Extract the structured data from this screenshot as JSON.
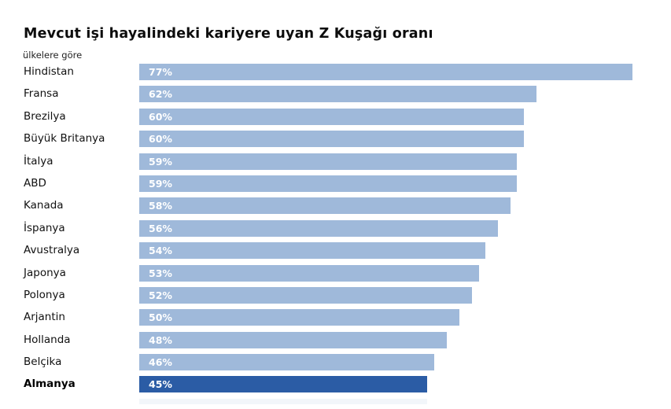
{
  "title": "Mevcut işi hayalindeki kariyere uyan Z Kuşağı oranı",
  "subtitle": "ülkelere göre",
  "colors": {
    "bar": "#9FB9DA",
    "highlight_bar": "#2B5CA5",
    "value_text": "#FFFFFF",
    "bottom_strip": "#F2F6FA"
  },
  "chart_data": {
    "type": "bar",
    "orientation": "horizontal",
    "title": "Mevcut işi hayalindeki kariyere uyan Z Kuşağı oranı",
    "subtitle": "ülkelere göre",
    "categories": [
      "Hindistan",
      "Fransa",
      "Brezilya",
      "Büyük Britanya",
      "İtalya",
      "ABD",
      "Kanada",
      "İspanya",
      "Avustralya",
      "Japonya",
      "Polonya",
      "Arjantin",
      "Hollanda",
      "Belçika",
      "Almanya"
    ],
    "values": [
      77,
      62,
      60,
      60,
      59,
      59,
      58,
      56,
      54,
      53,
      52,
      50,
      48,
      46,
      45
    ],
    "value_suffix": "%",
    "value_labels": [
      "77%",
      "62%",
      "60%",
      "60%",
      "59%",
      "59%",
      "58%",
      "56%",
      "54%",
      "53%",
      "52%",
      "50%",
      "48%",
      "46%",
      "45%"
    ],
    "highlight_category": "Almanya",
    "axis_range": [
      0,
      77
    ],
    "grid": false,
    "legend": false,
    "value_label_position": "inside-start"
  }
}
